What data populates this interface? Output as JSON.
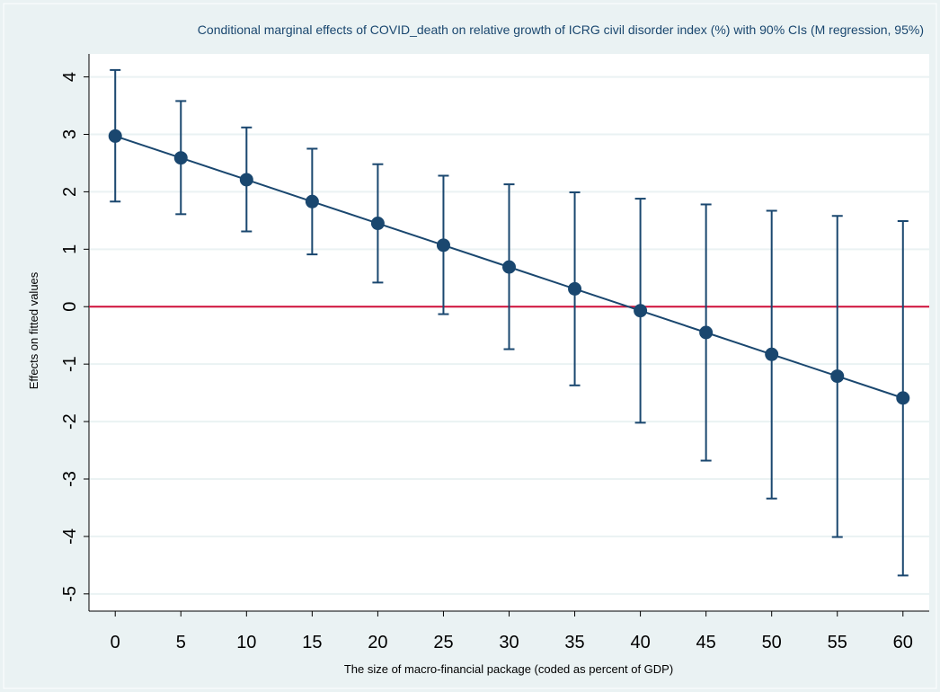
{
  "chart_data": {
    "type": "line",
    "title": "Conditional marginal effects of COVID_death on relative growth of ICRG civil disorder index (%) with 90% CIs (M regression, 95%)",
    "xlabel": "The size of macro-financial package (coded as percent of GDP)",
    "ylabel": "Effects on fitted values",
    "x": [
      0,
      5,
      10,
      15,
      20,
      25,
      30,
      35,
      40,
      45,
      50,
      55,
      60
    ],
    "series": [
      {
        "values": [
          2.97,
          2.59,
          2.21,
          1.83,
          1.45,
          1.07,
          0.69,
          0.31,
          -0.07,
          -0.45,
          -0.83,
          -1.21,
          -1.59
        ],
        "ci_lower": [
          1.83,
          1.61,
          1.31,
          0.91,
          0.42,
          -0.13,
          -0.74,
          -1.37,
          -2.02,
          -2.68,
          -3.34,
          -4.01,
          -4.68
        ],
        "ci_upper": [
          4.12,
          3.58,
          3.12,
          2.75,
          2.48,
          2.28,
          2.13,
          1.99,
          1.88,
          1.78,
          1.67,
          1.58,
          1.49
        ]
      }
    ],
    "reference_line": {
      "y": 0,
      "color": "#d0103a"
    },
    "xlim": [
      -2,
      62
    ],
    "ylim": [
      -5.3,
      4.4
    ],
    "x_ticks": [
      0,
      5,
      10,
      15,
      20,
      25,
      30,
      35,
      40,
      45,
      50,
      55,
      60
    ],
    "y_ticks": [
      -5,
      -4,
      -3,
      -2,
      -1,
      0,
      1,
      2,
      3,
      4
    ],
    "grid": true,
    "colors": {
      "series": "#1a476f",
      "reference": "#d0103a",
      "grid": "#eaf2f3",
      "background": "#eaf2f3",
      "plot_background": "#ffffff"
    }
  }
}
